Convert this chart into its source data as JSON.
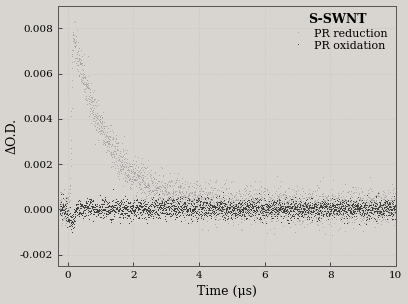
{
  "title": "S-SWNT",
  "xlabel": "Time (μs)",
  "ylabel": "ΔO.D.",
  "xlim": [
    -0.3,
    10
  ],
  "ylim": [
    -0.0025,
    0.009
  ],
  "yticks": [
    -0.002,
    0.0,
    0.002,
    0.004,
    0.006,
    0.008
  ],
  "xticks": [
    0,
    2,
    4,
    6,
    8,
    10
  ],
  "legend_label_reduction": "PR reduction",
  "legend_label_oxidation": "PR oxidation",
  "color_reduction": "#999999",
  "color_oxidation": "#333333",
  "background_color": "#d8d5d0",
  "plot_bg_color": "#d8d5d0",
  "seed": 42,
  "noise_reduction": 0.00042,
  "noise_oxidation": 0.00022,
  "peak_time": 0.15,
  "peak_amplitude": 0.0076,
  "decay_tau": 1.1,
  "baseline_reduction": 8e-05,
  "n_points": 2500
}
